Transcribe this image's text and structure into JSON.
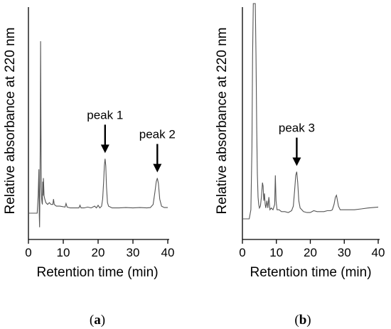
{
  "chart_data": [
    {
      "type": "line",
      "panel_label": "a",
      "xlabel": "Retention time (min)",
      "ylabel": "Relative absorbance at 220 nm",
      "xlim": [
        0,
        40
      ],
      "xticks": [
        0,
        10,
        20,
        30,
        40
      ],
      "yticks": [],
      "grid": false,
      "annotations": [
        {
          "text": "peak 1",
          "x": 22.0
        },
        {
          "text": "peak 2",
          "x": 37.0
        }
      ],
      "series": [
        {
          "x": [
            0.0,
            2.5,
            2.8,
            3.0,
            3.1,
            3.2,
            3.3,
            3.4,
            3.5,
            3.6,
            3.7,
            3.8,
            3.9,
            4.0,
            4.1,
            4.2,
            4.3,
            4.5,
            4.7,
            5.0,
            5.5,
            6.0,
            6.5,
            7.0,
            7.2,
            7.4,
            8.0,
            9.0,
            10.5,
            10.8,
            11.1,
            12.0,
            13.0,
            14.5,
            14.8,
            15.1,
            16.0,
            17.0,
            18.0,
            19.0,
            19.5,
            20.0,
            20.5,
            21.0,
            21.3,
            21.6,
            21.8,
            22.0,
            22.2,
            22.4,
            22.7,
            23.0,
            23.5,
            24.0,
            26.0,
            28.0,
            30.0,
            32.0,
            34.0,
            35.0,
            35.8,
            36.3,
            36.7,
            37.0,
            37.3,
            37.7,
            38.2,
            39.0,
            40.0
          ],
          "y": [
            0.0,
            0.0,
            0.1,
            0.25,
            0.0,
            -0.08,
            0.15,
            0.45,
            0.98,
            0.5,
            0.15,
            0.08,
            0.06,
            0.05,
            0.18,
            0.1,
            0.2,
            0.1,
            0.08,
            0.06,
            0.05,
            0.06,
            0.05,
            0.05,
            0.08,
            0.05,
            0.04,
            0.04,
            0.035,
            0.055,
            0.035,
            0.03,
            0.03,
            0.03,
            0.045,
            0.03,
            0.03,
            0.035,
            0.03,
            0.04,
            0.03,
            0.045,
            0.03,
            0.04,
            0.08,
            0.18,
            0.27,
            0.31,
            0.27,
            0.15,
            0.06,
            0.04,
            0.035,
            0.03,
            0.03,
            0.032,
            0.03,
            0.032,
            0.03,
            0.032,
            0.05,
            0.12,
            0.18,
            0.2,
            0.17,
            0.08,
            0.04,
            0.032,
            0.032
          ]
        }
      ]
    },
    {
      "type": "line",
      "panel_label": "b",
      "xlabel": "Retention time (min)",
      "ylabel": "Relative absorbance at 220 nm",
      "xlim": [
        0,
        40
      ],
      "xticks": [
        0,
        10,
        20,
        30,
        40
      ],
      "yticks": [],
      "grid": false,
      "annotations": [
        {
          "text": "peak 3",
          "x": 16.0
        }
      ],
      "series": [
        {
          "x": [
            0.0,
            2.0,
            2.5,
            2.8,
            3.0,
            3.2,
            3.5,
            3.8,
            4.0,
            4.2,
            4.4,
            4.6,
            4.8,
            5.0,
            5.3,
            5.6,
            5.9,
            6.1,
            6.3,
            6.5,
            6.7,
            6.9,
            7.2,
            7.5,
            7.8,
            8.1,
            8.5,
            9.0,
            9.5,
            9.7,
            9.9,
            10.2,
            10.8,
            11.5,
            12.5,
            13.5,
            14.5,
            15.0,
            15.4,
            15.7,
            16.0,
            16.3,
            16.6,
            17.0,
            17.5,
            18.0,
            19.0,
            20.0,
            21.0,
            22.0,
            23.0,
            24.0,
            25.0,
            26.0,
            26.5,
            27.0,
            27.4,
            27.7,
            28.0,
            28.3,
            28.8,
            29.5,
            31.0,
            33.0,
            35.0,
            37.0,
            40.0
          ],
          "y": [
            0.0,
            0.0,
            0.05,
            0.4,
            0.9,
            1.2,
            1.2,
            1.2,
            0.9,
            0.5,
            0.25,
            0.12,
            0.08,
            0.06,
            0.07,
            0.12,
            0.2,
            0.18,
            0.1,
            0.14,
            0.08,
            0.06,
            0.1,
            0.06,
            0.12,
            0.05,
            0.06,
            0.05,
            0.08,
            0.24,
            0.1,
            0.05,
            0.05,
            0.04,
            0.04,
            0.035,
            0.045,
            0.07,
            0.16,
            0.24,
            0.26,
            0.2,
            0.1,
            0.06,
            0.05,
            0.04,
            0.035,
            0.035,
            0.045,
            0.04,
            0.04,
            0.04,
            0.045,
            0.045,
            0.05,
            0.08,
            0.12,
            0.13,
            0.1,
            0.07,
            0.05,
            0.05,
            0.05,
            0.05,
            0.055,
            0.06,
            0.065
          ]
        }
      ]
    }
  ]
}
